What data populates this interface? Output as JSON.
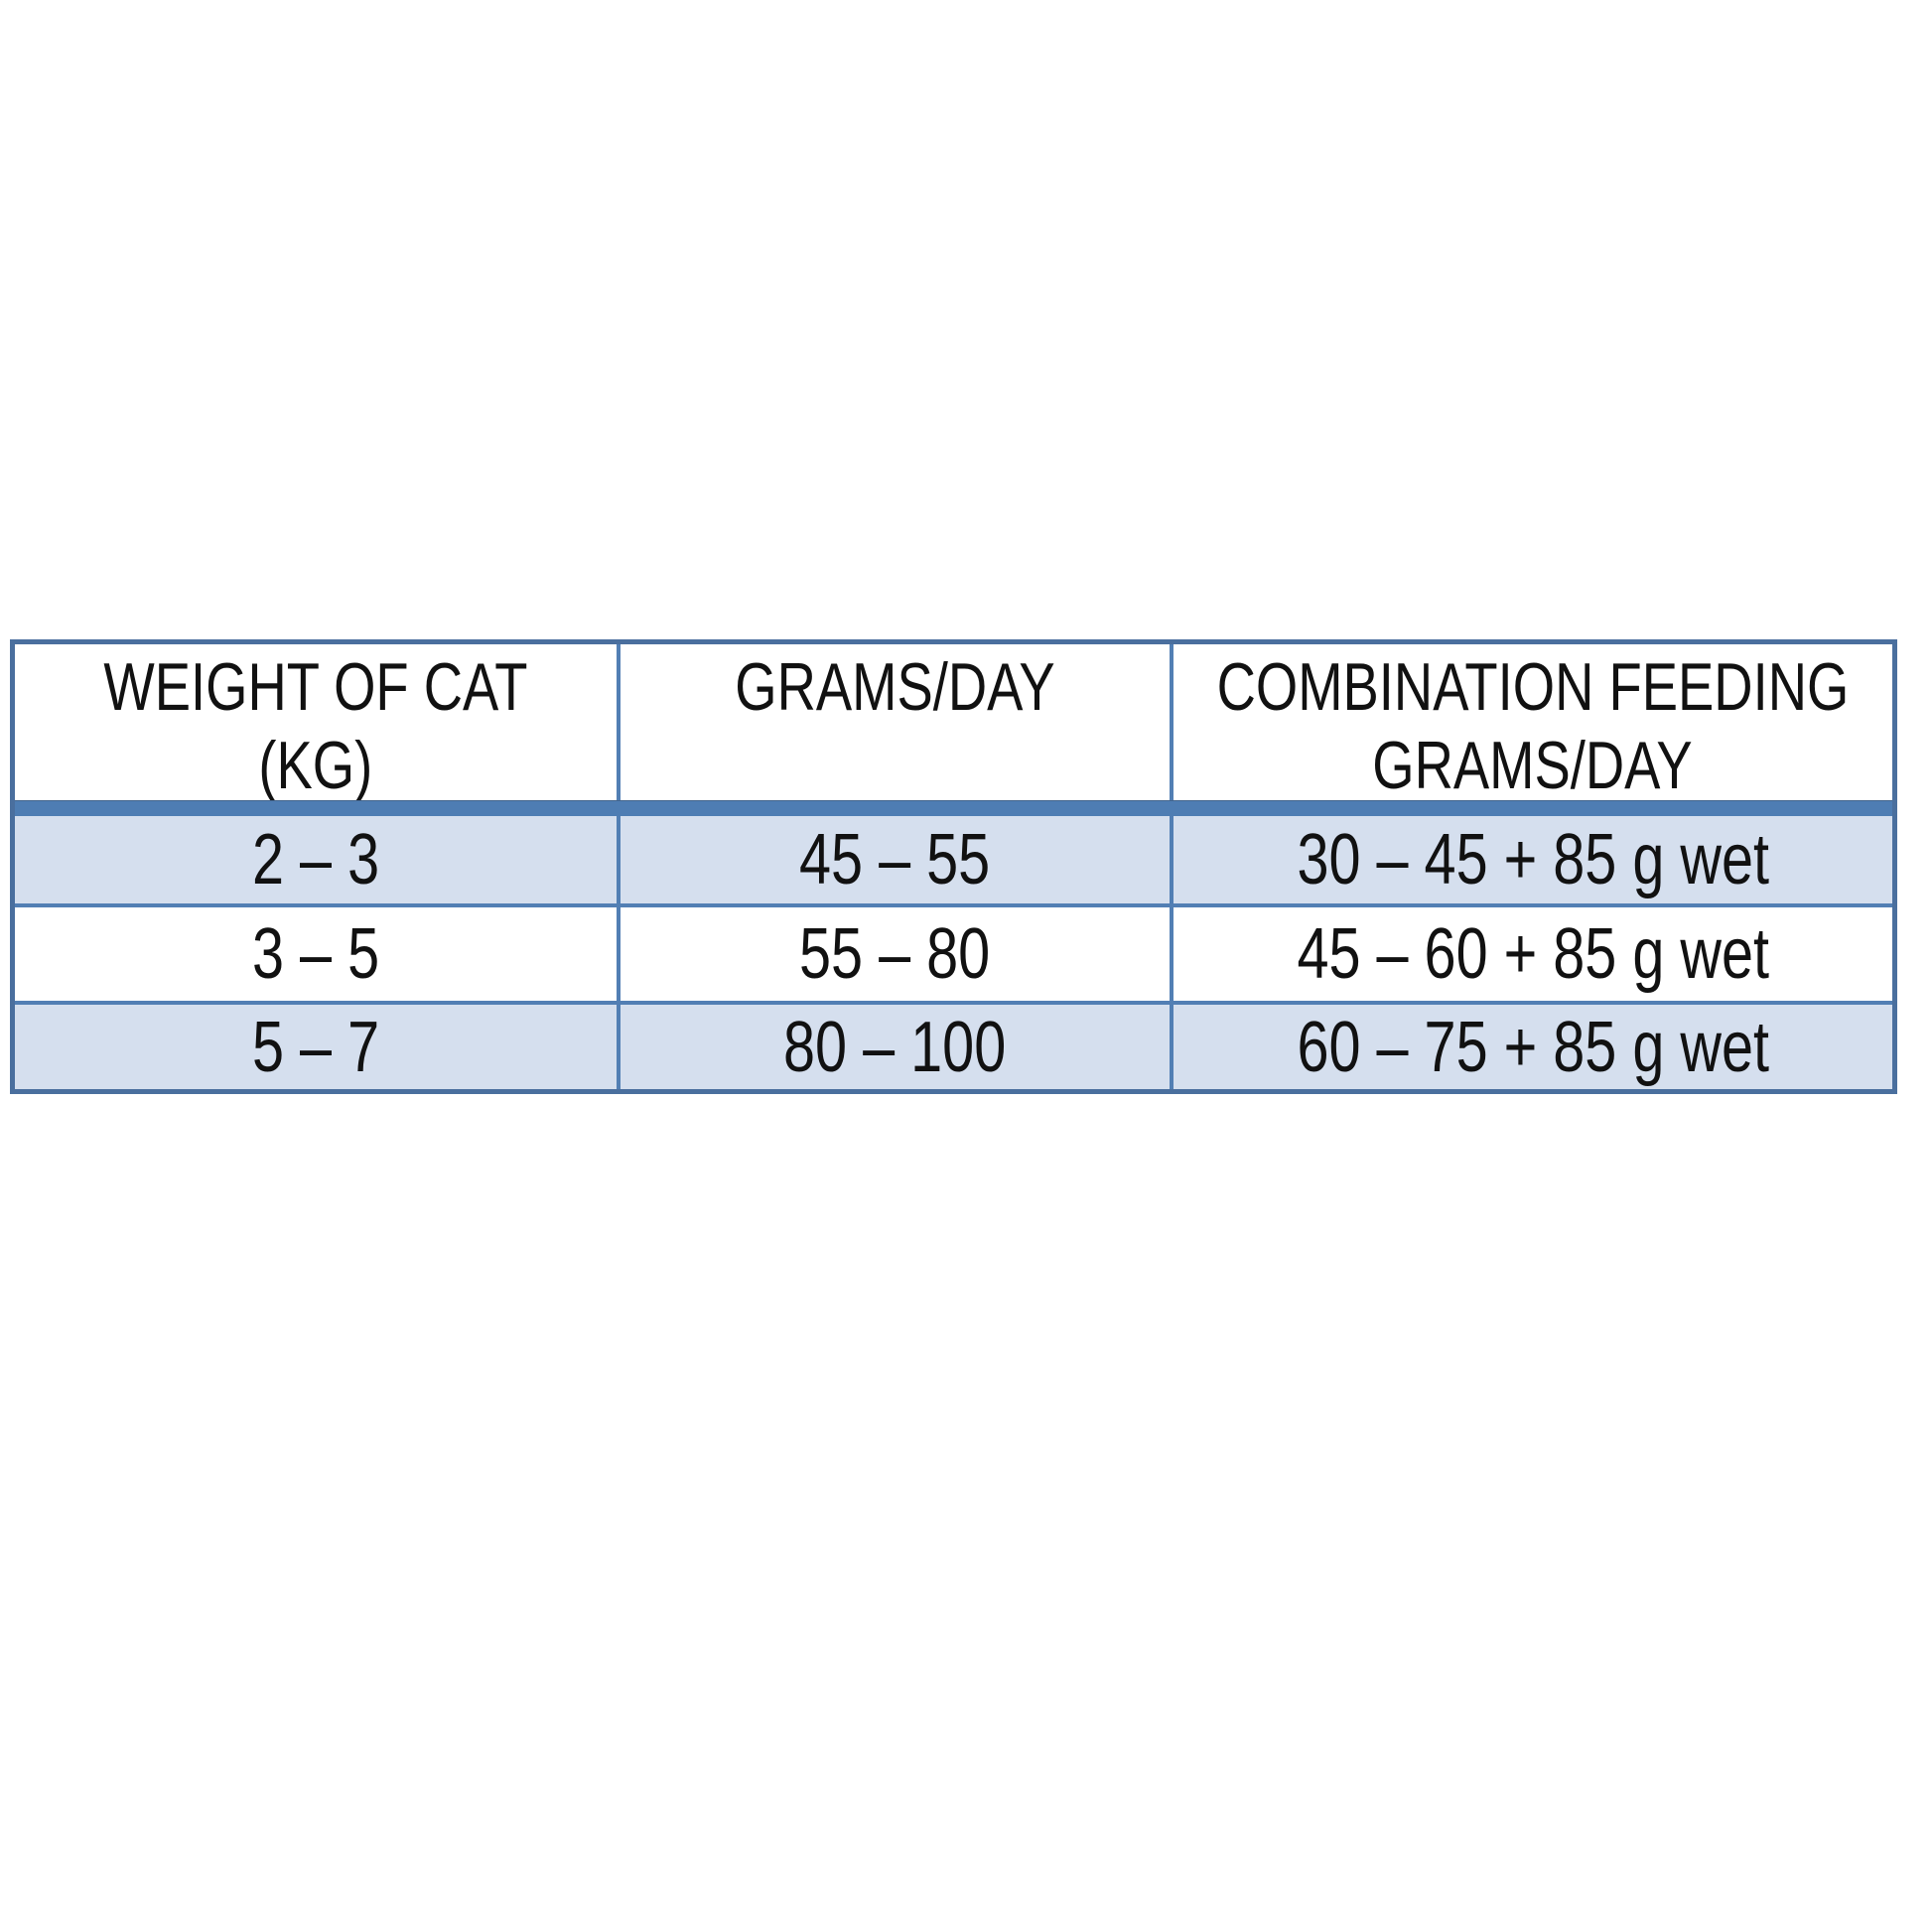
{
  "chart_data": {
    "type": "table",
    "title": "",
    "columns": [
      "WEIGHT OF CAT (KG)",
      "GRAMS/DAY",
      "COMBINATION FEEDING GRAMS/DAY"
    ],
    "rows": [
      [
        "2 – 3",
        "45 – 55",
        "30 – 45 + 85 g wet"
      ],
      [
        "3 – 5",
        "55 – 80",
        "45 – 60 + 85 g wet"
      ],
      [
        "5 – 7",
        "80 – 100",
        "60 – 75 + 85 g wet"
      ]
    ]
  },
  "table": {
    "header": {
      "col1_line1": "WEIGHT OF CAT",
      "col1_line2": "(KG)",
      "col2_line1": "GRAMS/DAY",
      "col3_line1": "COMBINATION FEEDING",
      "col3_line2": "GRAMS/DAY"
    },
    "colors": {
      "outer_border": "#4a6f9e",
      "inner_border": "#527fb4",
      "header_band": "#4e7db3",
      "banded_row": "#d5dfee",
      "text": "#111111",
      "background": "#ffffff"
    }
  }
}
